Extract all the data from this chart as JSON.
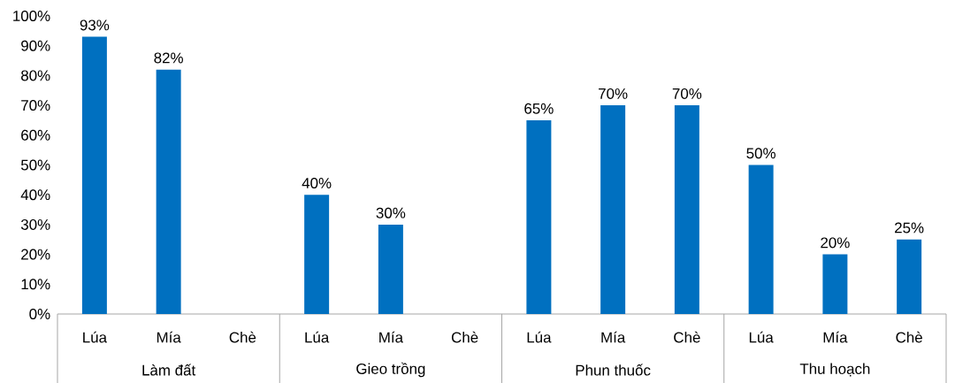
{
  "chart_data": {
    "type": "bar",
    "categories": [
      "Lúa",
      "Mía",
      "Chè",
      "Lúa",
      "Mía",
      "Chè",
      "Lúa",
      "Mía",
      "Chè",
      "Lúa",
      "Mía",
      "Chè"
    ],
    "values": [
      93,
      82,
      null,
      40,
      30,
      null,
      65,
      70,
      70,
      50,
      20,
      25
    ],
    "value_labels": [
      "93%",
      "82%",
      null,
      "40%",
      "30%",
      null,
      "65%",
      "70%",
      "70%",
      "50%",
      "20%",
      "25%"
    ],
    "color": "#0070c0",
    "ylim": [
      0,
      100
    ],
    "yticks": [
      {
        "value": 0,
        "label": "0%"
      },
      {
        "value": 10,
        "label": "10%"
      },
      {
        "value": 20,
        "label": "20%"
      },
      {
        "value": 30,
        "label": "30%"
      },
      {
        "value": 40,
        "label": "40%"
      },
      {
        "value": 50,
        "label": "50%"
      },
      {
        "value": 60,
        "label": "60%"
      },
      {
        "value": 70,
        "label": "70%"
      },
      {
        "value": 80,
        "label": "80%"
      },
      {
        "value": 90,
        "label": "90%"
      },
      {
        "value": 100,
        "label": "100%"
      }
    ],
    "annotations": [
      "Làm đất",
      "Gieo trồng",
      "Phun thuốc",
      "Thu hoạch"
    ],
    "grid": false
  }
}
